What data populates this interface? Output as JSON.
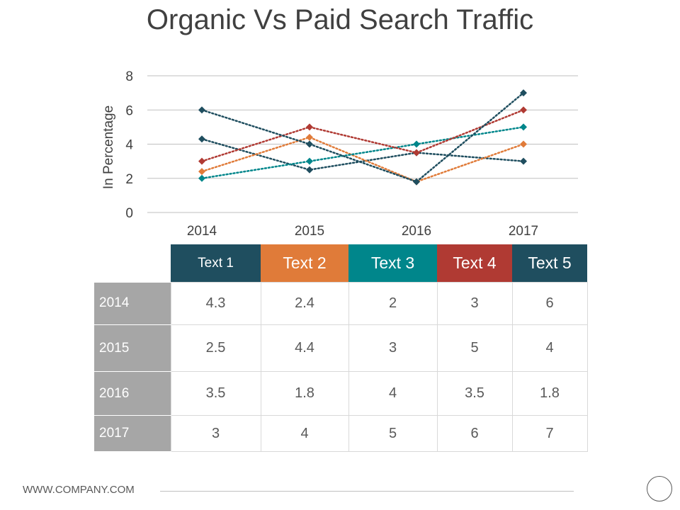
{
  "page": {
    "title": "Organic Vs Paid Search Traffic",
    "footer": "WWW.COMPANY.COM"
  },
  "chart_data": {
    "type": "line",
    "title": "",
    "ylabel": "In Percentage",
    "xlabel": "",
    "ylim": [
      0,
      8
    ],
    "yticks": [
      0,
      2,
      4,
      6,
      8
    ],
    "categories": [
      "2014",
      "2015",
      "2016",
      "2017"
    ],
    "grid": true,
    "line_style": "dotted",
    "marker": "diamond",
    "series": [
      {
        "name": "Text 1",
        "color": "#1f4e5f",
        "values": [
          4.3,
          2.5,
          3.5,
          3
        ]
      },
      {
        "name": "Text 2",
        "color": "#e07b39",
        "values": [
          2.4,
          4.4,
          1.8,
          4
        ]
      },
      {
        "name": "Text 3",
        "color": "#00868b",
        "values": [
          2,
          3,
          4,
          5
        ]
      },
      {
        "name": "Text 4",
        "color": "#b03a33",
        "values": [
          3,
          5,
          3.5,
          6
        ]
      },
      {
        "name": "Text 5",
        "color": "#1f4e5f",
        "values": [
          6,
          4,
          1.8,
          7
        ]
      }
    ]
  },
  "table": {
    "header_font_note": "",
    "rows": [
      {
        "label": "2014",
        "values": [
          "4.3",
          "2.4",
          "2",
          "3",
          "6"
        ]
      },
      {
        "label": "2015",
        "values": [
          "2.5",
          "4.4",
          "3",
          "5",
          "4"
        ]
      },
      {
        "label": "2016",
        "values": [
          "3.5",
          "1.8",
          "4",
          "3.5",
          "1.8"
        ]
      },
      {
        "label": "2017",
        "values": [
          "3",
          "4",
          "5",
          "6",
          "7"
        ]
      }
    ]
  }
}
